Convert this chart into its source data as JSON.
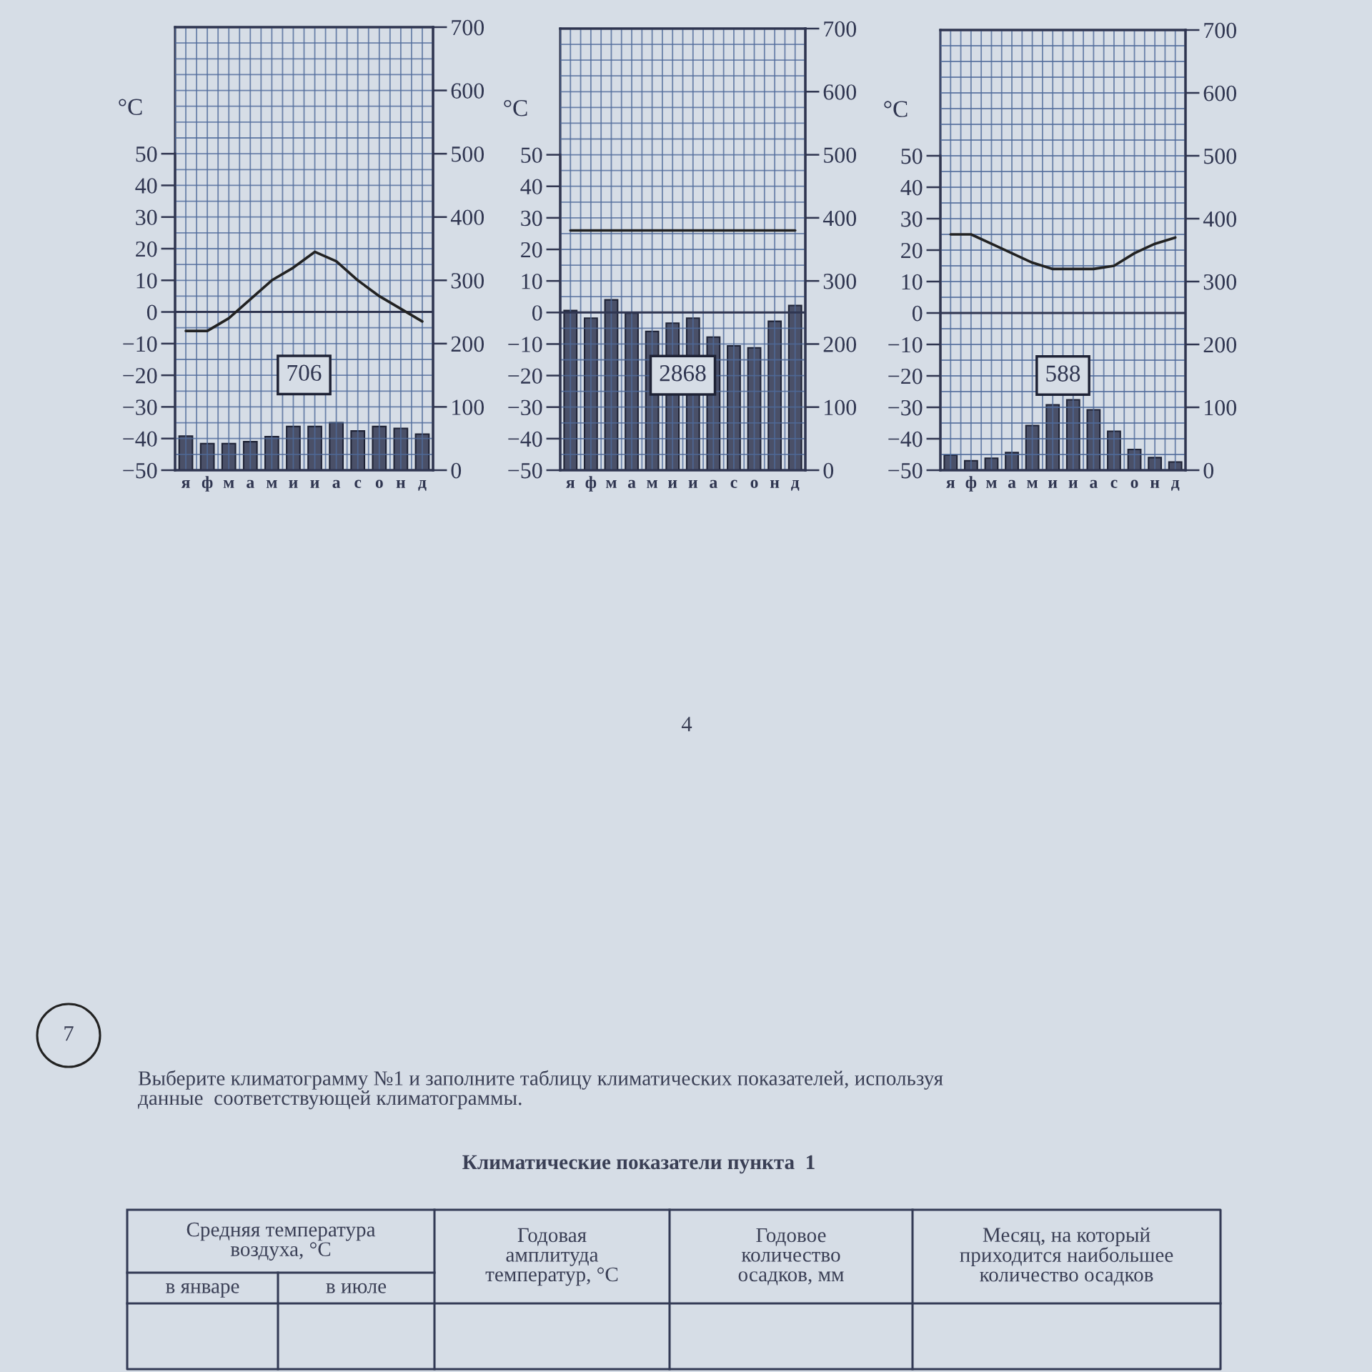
{
  "chart_data": [
    {
      "type": "bar",
      "categories": [
        "я",
        "ф",
        "м",
        "а",
        "м",
        "и",
        "и",
        "а",
        "с",
        "о",
        "н",
        "д"
      ],
      "ylabel": "°C",
      "annotations": [
        "706"
      ],
      "grid": true,
      "legend": false,
      "ylim": [
        -50,
        90
      ],
      "yticks": [
        {
          "value": -50,
          "label": "−50"
        },
        {
          "value": -40,
          "label": "−40"
        },
        {
          "value": -30,
          "label": "−30"
        },
        {
          "value": -20,
          "label": "−20"
        },
        {
          "value": -10,
          "label": "−10"
        },
        0,
        10,
        20,
        30,
        40,
        50
      ],
      "y2lim": [
        0,
        700
      ],
      "y2ticks": [
        0,
        100,
        200,
        300,
        400,
        500,
        600,
        700
      ],
      "series": [
        {
          "type": "bar",
          "axis": "y2",
          "color": "#4a5068",
          "values": [
            54,
            42,
            42,
            45,
            53,
            69,
            69,
            75,
            62,
            69,
            66,
            57
          ]
        },
        {
          "type": "line",
          "axis": "y",
          "color": "#222222",
          "values": [
            -6,
            -6,
            -2,
            4,
            10,
            14,
            19,
            16,
            10,
            5,
            1,
            -3
          ]
        }
      ]
    },
    {
      "type": "bar",
      "categories": [
        "я",
        "ф",
        "м",
        "а",
        "м",
        "и",
        "и",
        "а",
        "с",
        "о",
        "н",
        "д"
      ],
      "ylabel": "°C",
      "annotations": [
        "2868"
      ],
      "grid": true,
      "legend": false,
      "ylim": [
        -50,
        90
      ],
      "yticks": [
        {
          "value": -50,
          "label": "−50"
        },
        {
          "value": -40,
          "label": "−40"
        },
        {
          "value": -30,
          "label": "−30"
        },
        {
          "value": -20,
          "label": "−20"
        },
        {
          "value": -10,
          "label": "−10"
        },
        0,
        10,
        20,
        30,
        40,
        50
      ],
      "y2lim": [
        0,
        700
      ],
      "y2ticks": [
        0,
        100,
        200,
        300,
        400,
        500,
        600,
        700
      ],
      "series": [
        {
          "type": "bar",
          "axis": "y2",
          "color": "#4a5068",
          "values": [
            253,
            241,
            270,
            249,
            220,
            233,
            241,
            211,
            197,
            194,
            236,
            261
          ]
        },
        {
          "type": "line",
          "axis": "y",
          "color": "#222222",
          "values": [
            26,
            26,
            26,
            26,
            26,
            26,
            26,
            26,
            26,
            26,
            26,
            26
          ]
        }
      ]
    },
    {
      "type": "bar",
      "categories": [
        "я",
        "ф",
        "м",
        "а",
        "м",
        "и",
        "и",
        "а",
        "с",
        "о",
        "н",
        "д"
      ],
      "ylabel": "°C",
      "annotations": [
        "588"
      ],
      "grid": true,
      "legend": false,
      "ylim": [
        -50,
        90
      ],
      "yticks": [
        {
          "value": -50,
          "label": "−50"
        },
        {
          "value": -40,
          "label": "−40"
        },
        {
          "value": -30,
          "label": "−30"
        },
        {
          "value": -20,
          "label": "−20"
        },
        {
          "value": -10,
          "label": "−10"
        },
        0,
        10,
        20,
        30,
        40,
        50
      ],
      "y2lim": [
        0,
        700
      ],
      "y2ticks": [
        0,
        100,
        200,
        300,
        400,
        500,
        600,
        700
      ],
      "series": [
        {
          "type": "bar",
          "axis": "y2",
          "color": "#4a5068",
          "values": [
            24,
            15,
            19,
            28,
            71,
            104,
            112,
            96,
            62,
            33,
            20,
            13
          ]
        },
        {
          "type": "line",
          "axis": "y",
          "color": "#222222",
          "values": [
            25,
            25,
            22,
            19,
            16,
            14,
            14,
            14,
            15,
            19,
            22,
            24
          ]
        }
      ]
    },
    {
      "type": "other",
      "annotations": [
        "4",
        "7",
        "Выберите климатограмму №1 и заполните таблицу климатических показателей, используя\nданные  соответствующей климатограммы.",
        "Климатические показатели пункта  1",
        "Средняя температура\nвоздуха, °C",
        "в январе",
        "в июле",
        "Годовая\nамплитуда\nтемператур, °C",
        "Годовое\nколичество\nосадков, мм",
        "Месяц, на который\nприходится наибольшее\nколичество осадков"
      ]
    }
  ]
}
